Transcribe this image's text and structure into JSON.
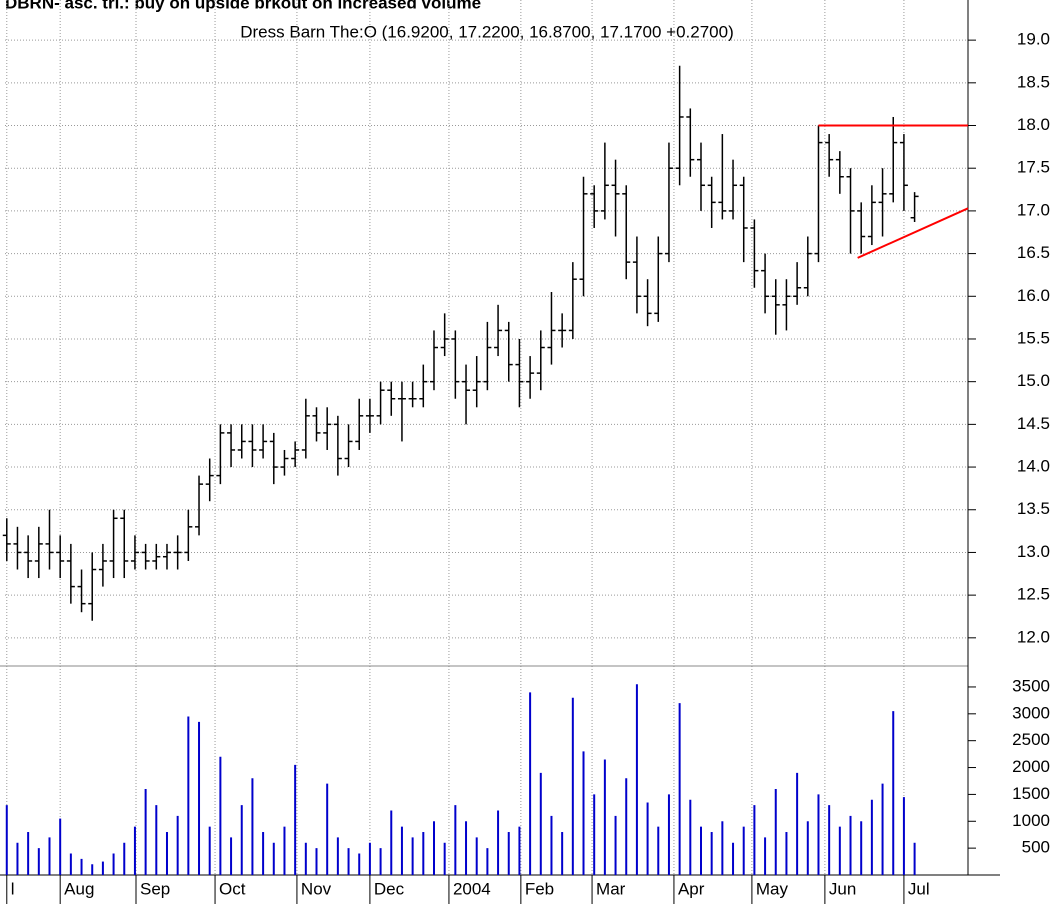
{
  "chart_data": {
    "type": "ohlc",
    "title": "DBRN- asc. tri.: buy on upside brkout on increased volume",
    "subtitle": "Dress Barn The:O (16.9200, 17.2200, 16.8700, 17.1700 +0.2700)",
    "color": "#000000",
    "grid": true,
    "x": [
      0,
      3,
      6,
      9,
      12,
      15,
      18,
      21,
      24,
      27,
      30,
      33,
      36,
      39,
      42,
      45,
      48,
      51,
      54,
      57,
      60,
      63,
      66,
      69,
      72,
      75,
      78,
      81,
      84,
      87,
      90,
      93,
      96,
      99,
      102,
      105,
      108,
      111,
      114,
      117,
      120,
      123,
      126,
      129,
      132,
      135,
      138,
      141,
      144,
      147,
      150,
      153,
      156,
      159,
      162,
      165,
      168,
      171,
      174,
      177,
      180,
      183,
      186,
      189,
      192,
      195,
      198,
      201,
      204,
      207,
      210,
      213,
      216,
      219,
      222,
      225,
      228,
      231,
      234,
      237,
      240,
      243,
      246,
      249,
      252,
      255
    ],
    "open": [
      13.2,
      13.1,
      13.0,
      12.9,
      13.1,
      13.0,
      12.9,
      12.6,
      12.4,
      12.8,
      12.9,
      13.4,
      12.9,
      13.0,
      12.9,
      12.95,
      13.0,
      13.0,
      13.3,
      13.8,
      13.9,
      14.4,
      14.2,
      14.3,
      14.2,
      14.3,
      14.0,
      14.1,
      14.2,
      14.6,
      14.4,
      14.5,
      14.1,
      14.3,
      14.6,
      14.6,
      14.9,
      14.8,
      14.8,
      14.8,
      15.0,
      15.4,
      15.5,
      15.0,
      14.9,
      15.0,
      15.4,
      15.6,
      15.2,
      15.0,
      15.1,
      15.4,
      15.6,
      15.6,
      16.2,
      17.2,
      17.0,
      17.3,
      17.2,
      16.4,
      16.0,
      15.8,
      16.5,
      17.5,
      18.1,
      17.6,
      17.3,
      17.1,
      17.0,
      17.3,
      16.8,
      16.3,
      16.0,
      15.9,
      16.0,
      16.1,
      16.5,
      17.8,
      17.6,
      17.4,
      17.0,
      16.7,
      17.1,
      17.2,
      17.8,
      16.92
    ],
    "high": [
      13.4,
      13.3,
      13.2,
      13.3,
      13.5,
      13.2,
      13.1,
      12.8,
      13.0,
      13.1,
      13.5,
      13.5,
      13.2,
      13.1,
      13.1,
      13.1,
      13.2,
      13.5,
      13.9,
      14.1,
      14.5,
      14.5,
      14.5,
      14.5,
      14.5,
      14.4,
      14.2,
      14.3,
      14.8,
      14.7,
      14.7,
      14.6,
      14.5,
      14.8,
      14.8,
      15.0,
      15.0,
      15.0,
      15.0,
      15.2,
      15.6,
      15.8,
      15.6,
      15.2,
      15.3,
      15.7,
      15.9,
      15.7,
      15.5,
      15.3,
      15.6,
      16.05,
      15.8,
      16.4,
      17.4,
      17.3,
      17.8,
      17.6,
      17.3,
      16.7,
      16.2,
      16.7,
      17.8,
      18.7,
      18.2,
      17.8,
      17.4,
      17.9,
      17.6,
      17.4,
      16.9,
      16.5,
      16.2,
      16.2,
      16.4,
      16.7,
      18.0,
      17.9,
      17.7,
      17.5,
      17.1,
      17.3,
      17.5,
      18.1,
      17.9,
      17.22
    ],
    "low": [
      12.9,
      12.8,
      12.7,
      12.7,
      12.8,
      12.7,
      12.4,
      12.3,
      12.2,
      12.6,
      12.7,
      12.7,
      12.8,
      12.8,
      12.8,
      12.8,
      12.8,
      12.9,
      13.2,
      13.6,
      13.8,
      14.0,
      14.1,
      14.0,
      14.1,
      13.8,
      13.9,
      14.0,
      14.1,
      14.3,
      14.2,
      13.9,
      14.0,
      14.2,
      14.4,
      14.5,
      14.6,
      14.3,
      14.7,
      14.7,
      14.9,
      15.3,
      14.8,
      14.5,
      14.7,
      14.9,
      15.3,
      15.0,
      14.7,
      14.8,
      14.9,
      15.2,
      15.4,
      15.5,
      16.0,
      16.8,
      16.9,
      16.7,
      16.2,
      15.8,
      15.65,
      15.7,
      16.4,
      17.3,
      17.4,
      17.0,
      16.8,
      16.9,
      16.9,
      16.4,
      16.1,
      15.8,
      15.55,
      15.6,
      15.9,
      16.0,
      16.4,
      17.4,
      17.2,
      16.5,
      16.5,
      16.6,
      16.7,
      17.1,
      17.0,
      16.87
    ],
    "close": [
      13.1,
      13.0,
      12.9,
      13.1,
      13.0,
      12.9,
      12.6,
      12.4,
      12.8,
      12.9,
      13.4,
      12.9,
      13.0,
      12.9,
      12.95,
      13.0,
      13.0,
      13.3,
      13.8,
      13.9,
      14.4,
      14.2,
      14.3,
      14.2,
      14.3,
      14.0,
      14.1,
      14.2,
      14.6,
      14.4,
      14.5,
      14.1,
      14.3,
      14.6,
      14.6,
      14.9,
      14.8,
      14.8,
      14.8,
      15.0,
      15.4,
      15.5,
      15.0,
      14.9,
      15.0,
      15.4,
      15.6,
      15.2,
      15.0,
      15.1,
      15.4,
      15.6,
      15.6,
      16.2,
      17.2,
      17.0,
      17.3,
      17.2,
      16.4,
      16.0,
      15.8,
      16.5,
      17.5,
      18.1,
      17.6,
      17.3,
      17.1,
      17.0,
      17.3,
      16.8,
      16.3,
      16.0,
      15.9,
      16.0,
      16.1,
      16.5,
      17.8,
      17.6,
      17.4,
      17.0,
      16.7,
      17.1,
      17.2,
      17.8,
      17.3,
      17.17
    ],
    "xlim": [
      -0.5,
      270
    ],
    "xticks": [
      {
        "value": 0,
        "label": "l"
      },
      {
        "value": 15,
        "label": "Aug"
      },
      {
        "value": 36.3,
        "label": "Sep"
      },
      {
        "value": 58.5,
        "label": "Oct"
      },
      {
        "value": 81.5,
        "label": "Nov"
      },
      {
        "value": 102,
        "label": "Dec"
      },
      {
        "value": 124.2,
        "label": "2004"
      },
      {
        "value": 144.4,
        "label": "Feb"
      },
      {
        "value": 164.4,
        "label": "Mar"
      },
      {
        "value": 187.4,
        "label": "Apr"
      },
      {
        "value": 209.3,
        "label": "May"
      },
      {
        "value": 229.8,
        "label": "Jun"
      },
      {
        "value": 252,
        "label": "Jul"
      }
    ],
    "ylim": [
      11.67,
      19.47
    ],
    "yticks": [
      {
        "value": 12,
        "label": "12.0"
      },
      12.5,
      {
        "value": 13,
        "label": "13.0"
      },
      13.5,
      {
        "value": 14,
        "label": "14.0"
      },
      14.5,
      {
        "value": 15,
        "label": "15.0"
      },
      15.5,
      {
        "value": 16,
        "label": "16.0"
      },
      16.5,
      {
        "value": 17,
        "label": "17.0"
      },
      17.5,
      {
        "value": 18,
        "label": "18.0"
      },
      18.5,
      {
        "value": 19,
        "label": "19.0"
      }
    ],
    "lines": [
      {
        "color": "#ff0000",
        "x": [
          228,
          270
        ],
        "y": [
          18.0,
          18.0
        ]
      },
      {
        "color": "#ff0000",
        "x": [
          239,
          270
        ],
        "y": [
          16.45,
          17.03
        ]
      }
    ],
    "volume": {
      "color": "#0000cc",
      "ylim": [
        0,
        3890
      ],
      "yticks": [
        500,
        1000,
        1500,
        2000,
        2500,
        3000,
        3500
      ],
      "values": [
        1300,
        600,
        800,
        500,
        700,
        1050,
        400,
        300,
        200,
        250,
        400,
        600,
        900,
        1600,
        1300,
        800,
        1100,
        2950,
        2850,
        900,
        2200,
        700,
        1300,
        1800,
        800,
        600,
        900,
        2050,
        600,
        500,
        1700,
        700,
        500,
        400,
        600,
        500,
        1200,
        900,
        700,
        800,
        1000,
        600,
        1300,
        1000,
        700,
        500,
        1200,
        800,
        900,
        3400,
        1900,
        1100,
        800,
        3300,
        2300,
        1500,
        2150,
        1100,
        1800,
        3550,
        1350,
        900,
        1500,
        3200,
        1400,
        900,
        800,
        1000,
        600,
        900,
        1300,
        700,
        1600,
        800,
        1900,
        1000,
        1500,
        1300,
        900,
        1100,
        1000,
        1400,
        1700,
        3050,
        1450,
        600
      ]
    }
  }
}
